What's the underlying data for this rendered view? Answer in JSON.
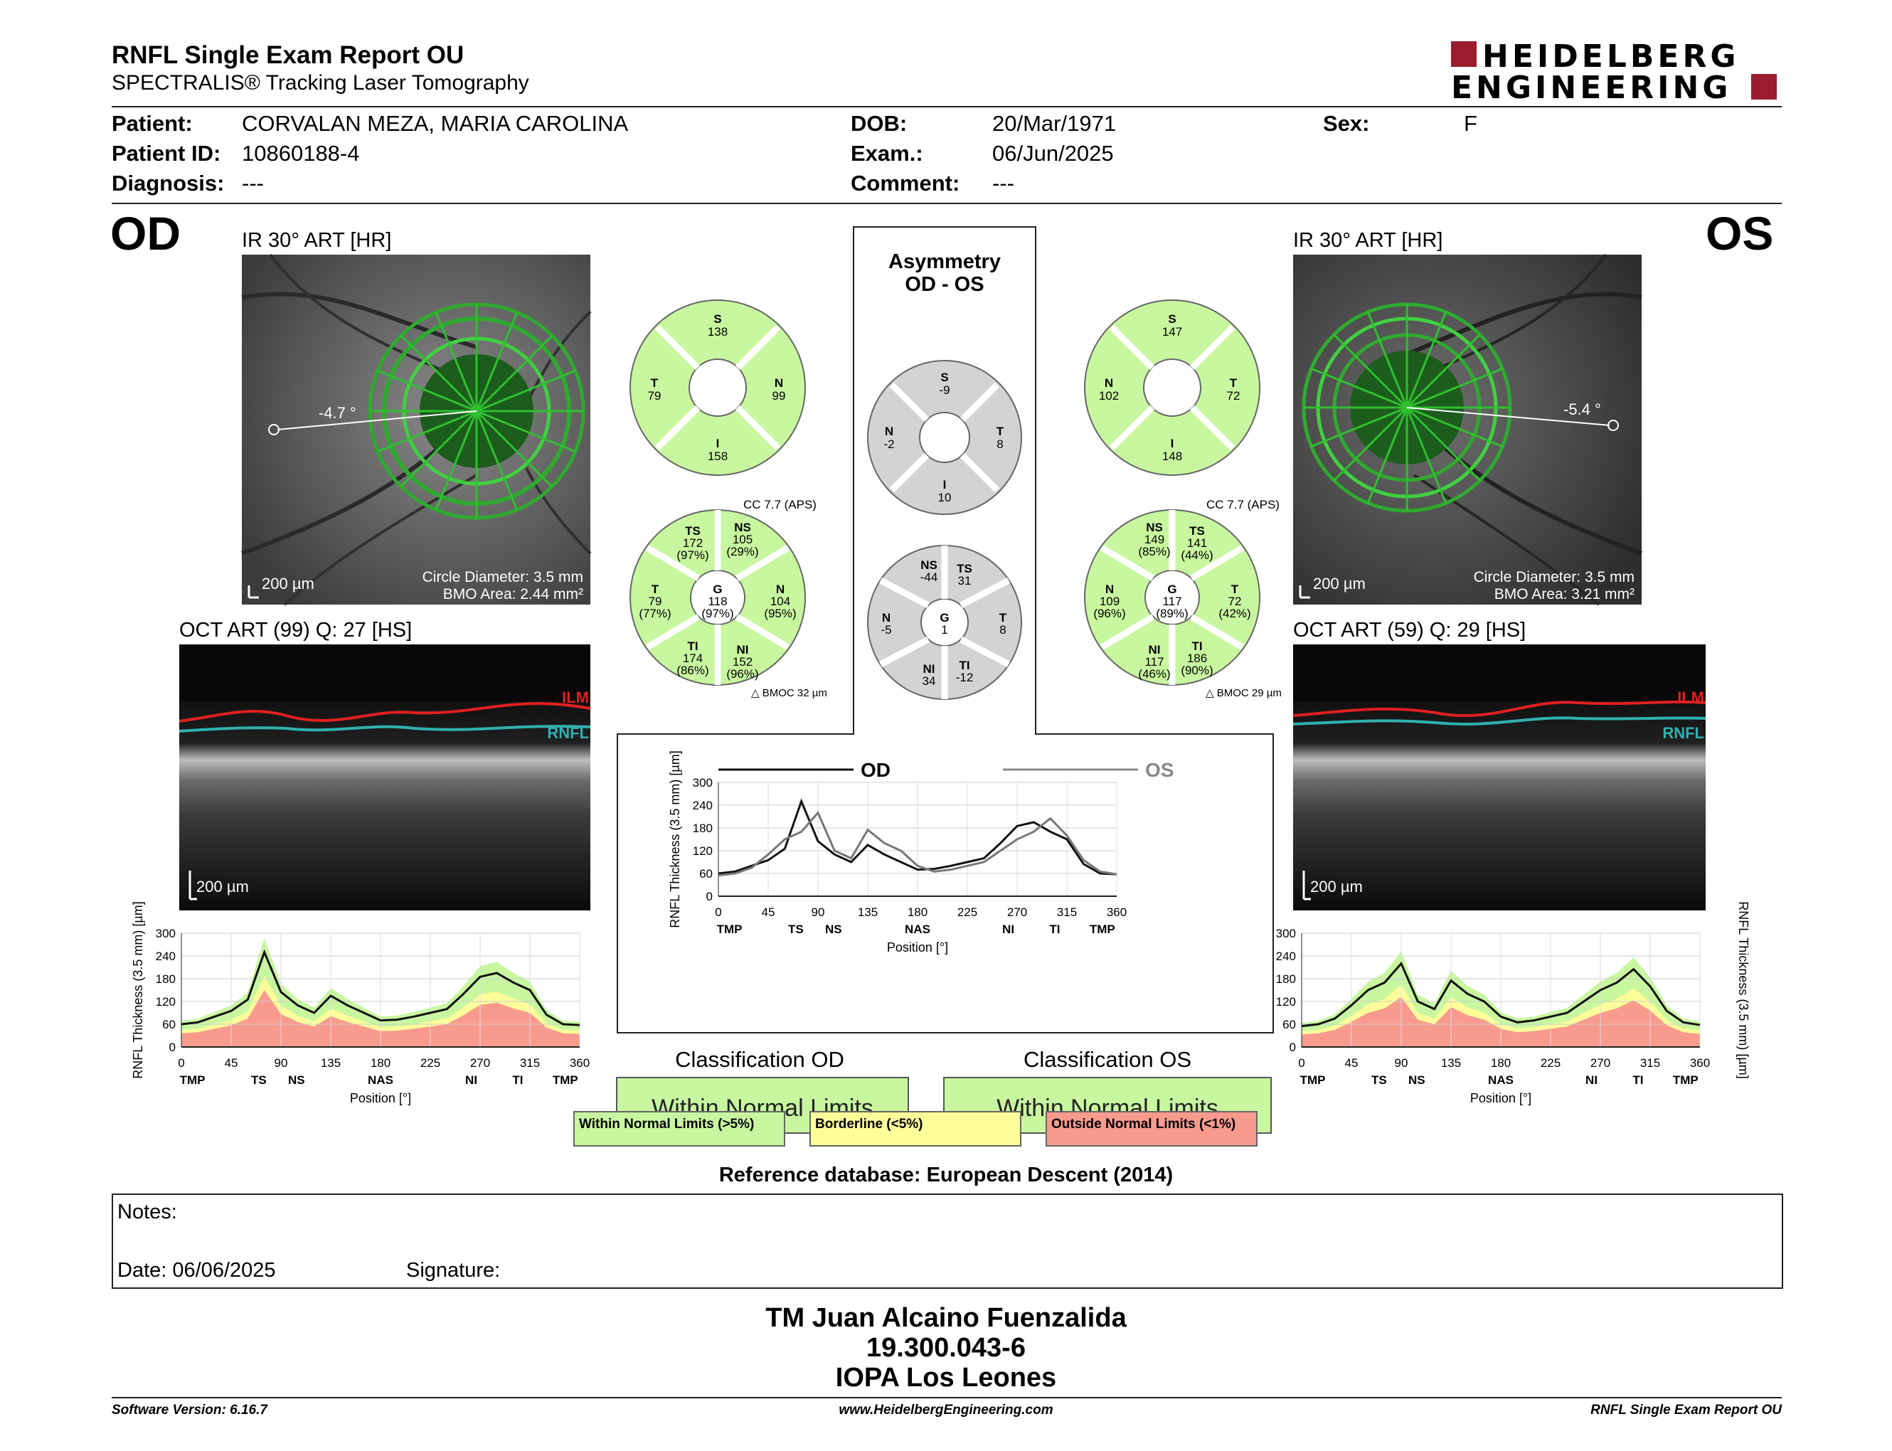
{
  "header": {
    "title": "RNFL Single Exam Report OU",
    "subtitle": "SPECTRALIS® Tracking Laser Tomography",
    "logo_line1": "HEIDELBERG",
    "logo_line2": "ENGINEERING"
  },
  "patient": {
    "patient_label": "Patient:",
    "patient_value": "CORVALAN MEZA, MARIA CAROLINA",
    "id_label": "Patient ID:",
    "id_value": "10860188-4",
    "diagnosis_label": "Diagnosis:",
    "diagnosis_value": "---",
    "dob_label": "DOB:",
    "dob_value": "20/Mar/1971",
    "exam_label": "Exam.:",
    "exam_value": "06/Jun/2025",
    "comment_label": "Comment:",
    "comment_value": "---",
    "sex_label": "Sex:",
    "sex_value": "F"
  },
  "od": {
    "eye_label": "OD",
    "ir_title": "IR 30° ART [HR]",
    "angle": "-4.7 °",
    "scale": "200 µm",
    "circle_diameter": "Circle Diameter: 3.5 mm",
    "bmo_area": "BMO Area: 2.44 mm²",
    "oct_title": "OCT ART (99) Q: 27 [HS]",
    "oct_scale": "200 µm",
    "ilm": "ILM",
    "rnfl": "RNFL"
  },
  "os": {
    "eye_label": "OS",
    "ir_title": "IR 30° ART [HR]",
    "angle": "-5.4 °",
    "scale": "200 µm",
    "circle_diameter": "Circle Diameter: 3.5 mm",
    "bmo_area": "BMO Area: 3.21 mm²",
    "oct_title": "OCT ART (59) Q: 29 [HS]",
    "oct_scale": "200 µm",
    "ilm": "ILM",
    "rnfl": "RNFL"
  },
  "asymmetry": {
    "title1": "Asymmetry",
    "title2": "OD - OS"
  },
  "sector_charts": {
    "od_quad": {
      "S": "138",
      "T": "79",
      "N": "99",
      "I": "158"
    },
    "os_quad": {
      "S": "147",
      "N": "102",
      "T": "72",
      "I": "148"
    },
    "asym_quad": {
      "S": "-9",
      "N": "-2",
      "T": "8",
      "I": "10"
    },
    "od_six": {
      "TS": "172",
      "TS_p": "(97%)",
      "NS": "105",
      "NS_p": "(29%)",
      "T": "79",
      "T_p": "(77%)",
      "G": "118",
      "G_p": "(97%)",
      "N": "104",
      "N_p": "(95%)",
      "TI": "174",
      "TI_p": "(86%)",
      "NI": "152",
      "NI_p": "(96%)"
    },
    "os_six": {
      "NS": "149",
      "NS_p": "(85%)",
      "TS": "141",
      "TS_p": "(44%)",
      "N": "109",
      "N_p": "(96%)",
      "G": "117",
      "G_p": "(89%)",
      "T": "72",
      "T_p": "(42%)",
      "NI": "117",
      "NI_p": "(46%)",
      "TI": "186",
      "TI_p": "(90%)"
    },
    "asym_six": {
      "NS": "-44",
      "TS": "31",
      "N": "-5",
      "G": "1",
      "T": "8",
      "NI": "34",
      "TI": "-12"
    },
    "od_cc": "CC 7.7 (APS)",
    "os_cc": "CC 7.7 (APS)",
    "od_bmoc": "BMOC 32 µm",
    "os_bmoc": "BMOC 29 µm"
  },
  "chart_data": [
    {
      "type": "line",
      "title": "",
      "legend": [
        "OD",
        "OS"
      ],
      "xlabel": "Position [°]",
      "ylabel": "RNFL Thickness (3.5 mm) [µm]",
      "xlim": [
        0,
        360
      ],
      "ylim": [
        0,
        300
      ],
      "xticks": [
        "0",
        "45",
        "90",
        "135",
        "180",
        "225",
        "270",
        "315",
        "360"
      ],
      "yticks": [
        "0",
        "60",
        "120",
        "180",
        "240",
        "300"
      ],
      "sector_labels": [
        "TMP",
        "TS",
        "NS",
        "NAS",
        "NI",
        "TI",
        "TMP"
      ],
      "x": [
        0,
        15,
        30,
        45,
        60,
        75,
        90,
        105,
        120,
        135,
        150,
        165,
        180,
        195,
        210,
        225,
        240,
        255,
        270,
        285,
        300,
        315,
        330,
        345,
        360
      ],
      "series": [
        {
          "name": "OD",
          "values": [
            60,
            65,
            80,
            95,
            125,
            250,
            145,
            110,
            90,
            135,
            110,
            90,
            70,
            72,
            80,
            90,
            100,
            140,
            185,
            195,
            170,
            150,
            85,
            60,
            58
          ]
        },
        {
          "name": "OS",
          "values": [
            55,
            60,
            75,
            110,
            150,
            170,
            220,
            120,
            100,
            175,
            140,
            120,
            80,
            65,
            70,
            80,
            90,
            120,
            150,
            170,
            205,
            160,
            95,
            65,
            58
          ]
        }
      ]
    },
    {
      "type": "line",
      "title": "",
      "xlabel": "Position [°]",
      "ylabel": "RNFL Thickness (3.5 mm) [µm]",
      "xlim": [
        0,
        360
      ],
      "ylim": [
        0,
        300
      ],
      "xticks": [
        "0",
        "45",
        "90",
        "135",
        "180",
        "225",
        "270",
        "315",
        "360"
      ],
      "yticks": [
        "0",
        "60",
        "120",
        "180",
        "240",
        "300"
      ],
      "sector_labels": [
        "TMP",
        "TS",
        "NS",
        "NAS",
        "NI",
        "TI",
        "TMP"
      ],
      "x": [
        0,
        15,
        30,
        45,
        60,
        75,
        90,
        105,
        120,
        135,
        150,
        165,
        180,
        195,
        210,
        225,
        240,
        255,
        270,
        285,
        300,
        315,
        330,
        345,
        360
      ],
      "series": [
        {
          "name": "OD",
          "values": [
            60,
            65,
            80,
            95,
            125,
            250,
            145,
            110,
            90,
            135,
            110,
            90,
            70,
            72,
            80,
            90,
            100,
            140,
            185,
            195,
            170,
            150,
            85,
            60,
            58
          ]
        }
      ]
    },
    {
      "type": "line",
      "title": "",
      "xlabel": "Position [°]",
      "ylabel": "RNFL Thickness (3.5 mm) [µm]",
      "xlim": [
        0,
        360
      ],
      "ylim": [
        0,
        300
      ],
      "xticks": [
        "0",
        "45",
        "90",
        "135",
        "180",
        "225",
        "270",
        "315",
        "360"
      ],
      "yticks": [
        "0",
        "60",
        "120",
        "180",
        "240",
        "300"
      ],
      "sector_labels": [
        "TMP",
        "TS",
        "NS",
        "NAS",
        "NI",
        "TI",
        "TMP"
      ],
      "x": [
        0,
        15,
        30,
        45,
        60,
        75,
        90,
        105,
        120,
        135,
        150,
        165,
        180,
        195,
        210,
        225,
        240,
        255,
        270,
        285,
        300,
        315,
        330,
        345,
        360
      ],
      "series": [
        {
          "name": "OS",
          "values": [
            55,
            60,
            75,
            110,
            150,
            170,
            220,
            120,
            100,
            175,
            140,
            120,
            80,
            65,
            70,
            80,
            90,
            120,
            150,
            170,
            205,
            160,
            95,
            65,
            58
          ]
        }
      ]
    }
  ],
  "classification": {
    "od_title": "Classification OD",
    "os_title": "Classification OS",
    "od_value": "Within Normal Limits",
    "os_value": "Within Normal Limits",
    "legend_green": "Within Normal Limits (>5%)",
    "legend_yellow": "Borderline (<5%)",
    "legend_red": "Outside Normal Limits (<1%)",
    "color_green": "#c8f7a0",
    "color_yellow": "#fdfd9a",
    "color_red": "#f99a8e"
  },
  "reference_db": "Reference database: European Descent (2014)",
  "notes": {
    "notes_label": "Notes:",
    "date_label": "Date: 06/06/2025",
    "signature_label": "Signature:"
  },
  "footer": {
    "name": "TM Juan Alcaino Fuenzalida",
    "rut": "19.300.043-6",
    "clinic": "IOPA Los Leones",
    "software": "Software Version: 6.16.7",
    "website": "www.HeidelbergEngineering.com",
    "report": "RNFL Single Exam Report OU"
  }
}
